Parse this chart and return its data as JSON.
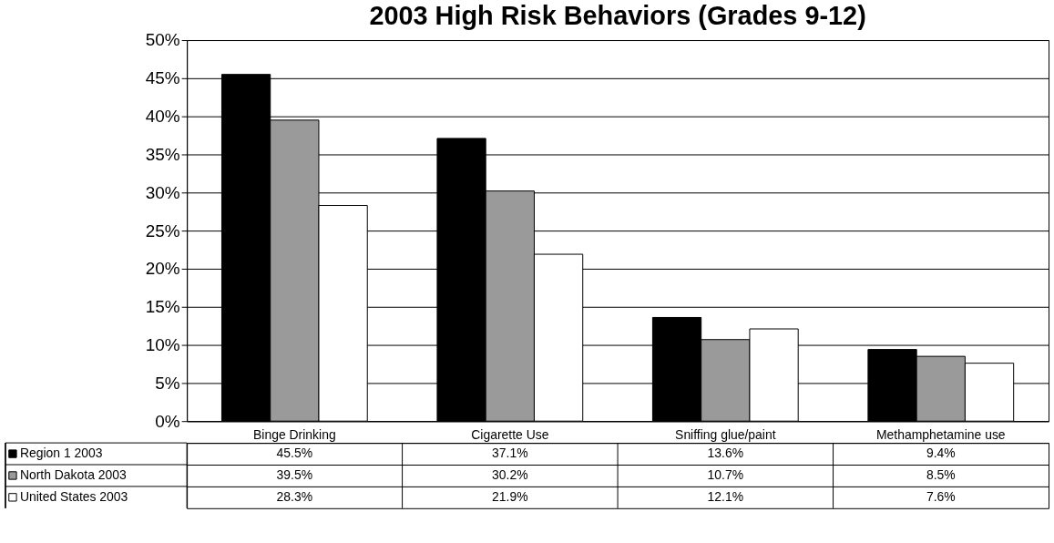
{
  "chart_data": {
    "type": "bar",
    "title": "2003 High Risk Behaviors (Grades 9-12)",
    "categories": [
      "Binge Drinking",
      "Cigarette Use",
      "Sniffing glue/paint",
      "Methamphetamine use"
    ],
    "series": [
      {
        "name": "Region 1 2003",
        "color": "#000000",
        "values": [
          45.5,
          37.1,
          13.6,
          9.4
        ],
        "value_labels": [
          "45.5%",
          "37.1%",
          "13.6%",
          "9.4%"
        ]
      },
      {
        "name": "North Dakota 2003",
        "color": "#9a9a9a",
        "values": [
          39.5,
          30.2,
          10.7,
          8.5
        ],
        "value_labels": [
          "39.5%",
          "30.2%",
          "10.7%",
          "8.5%"
        ]
      },
      {
        "name": "United States 2003",
        "color": "#ffffff",
        "values": [
          28.3,
          21.9,
          12.1,
          7.6
        ],
        "value_labels": [
          "28.3%",
          "21.9%",
          "12.1%",
          "7.6%"
        ]
      }
    ],
    "ylim": [
      0,
      50
    ],
    "yticks": [
      {
        "value": 0,
        "label": "0%"
      },
      {
        "value": 5,
        "label": "5%"
      },
      {
        "value": 10,
        "label": "10%"
      },
      {
        "value": 15,
        "label": "15%"
      },
      {
        "value": 20,
        "label": "20%"
      },
      {
        "value": 25,
        "label": "25%"
      },
      {
        "value": 30,
        "label": "30%"
      },
      {
        "value": 35,
        "label": "35%"
      },
      {
        "value": 40,
        "label": "40%"
      },
      {
        "value": 45,
        "label": "45%"
      },
      {
        "value": 50,
        "label": "50%"
      }
    ],
    "grid": "y",
    "legend": "bottom"
  }
}
